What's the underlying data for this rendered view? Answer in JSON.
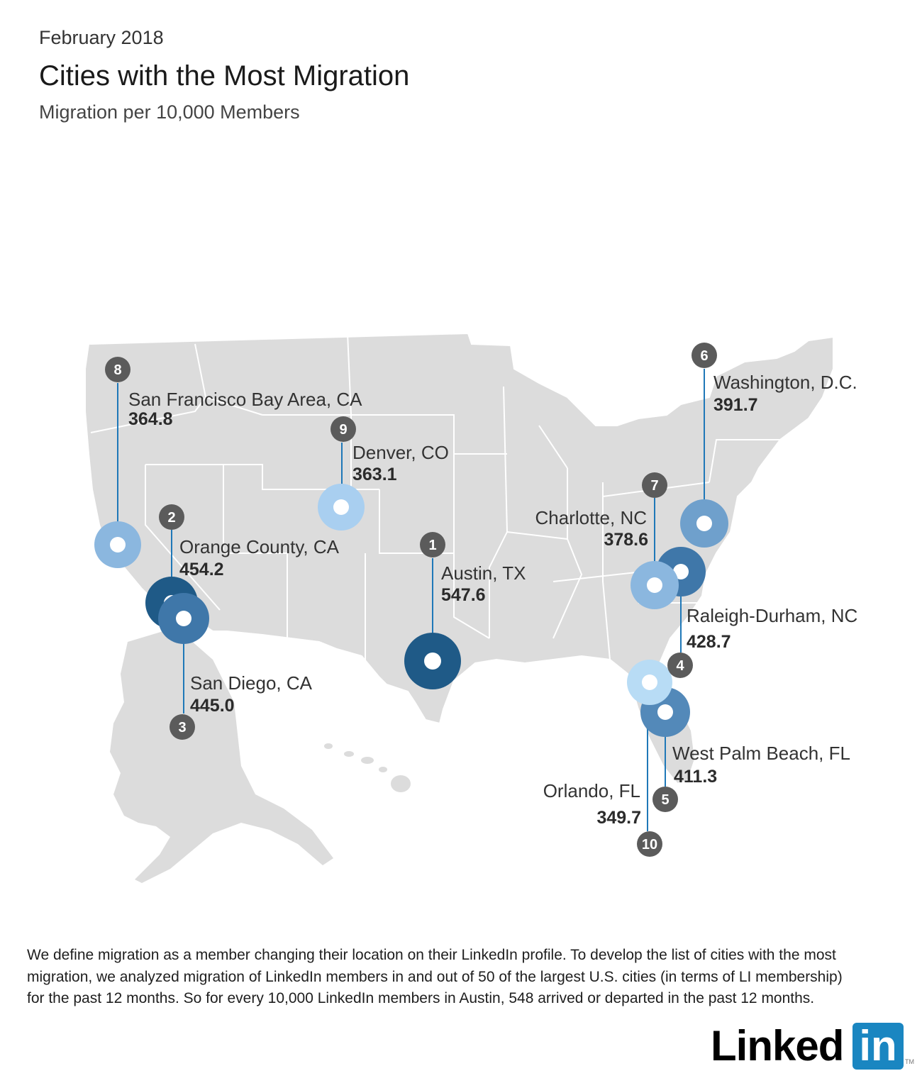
{
  "header": {
    "date": "February 2018",
    "title": "Cities with the Most Migration",
    "subtitle": "Migration per 10,000 Members"
  },
  "colors": {
    "land": "#dcdcdc",
    "leader_line": "#1f78b8",
    "badge": "#5b5b5b",
    "rank_1_3": "#1f5a87",
    "rank_4_5": "#3f77a9",
    "rank_6_9": "#8bb7df",
    "rank_10": "#b8dcf5",
    "logo_blue": "#1a86c1"
  },
  "cities": [
    {
      "rank": "1",
      "name": "Austin, TX",
      "value": "547.6"
    },
    {
      "rank": "2",
      "name": "Orange County, CA",
      "value": "454.2"
    },
    {
      "rank": "3",
      "name": "San Diego, CA",
      "value": "445.0"
    },
    {
      "rank": "4",
      "name": "Raleigh-Durham, NC",
      "value": "428.7"
    },
    {
      "rank": "5",
      "name": "West Palm Beach, FL",
      "value": "411.3"
    },
    {
      "rank": "6",
      "name": "Washington, D.C.",
      "value": "391.7"
    },
    {
      "rank": "7",
      "name": "Charlotte, NC",
      "value": "378.6"
    },
    {
      "rank": "8",
      "name": "San Francisco Bay Area, CA",
      "value": "364.8"
    },
    {
      "rank": "9",
      "name": "Denver, CO",
      "value": "363.1"
    },
    {
      "rank": "10",
      "name": "Orlando, FL",
      "value": "349.7"
    }
  ],
  "footnote": "We define migration as a member changing their location on their LinkedIn profile. To develop the list of cities with the most migration, we analyzed migration of LinkedIn members in and out of 50 of the largest U.S. cities (in terms of LI membership) for the past 12 months. So for every 10,000 LinkedIn members in Austin, 548 arrived or departed in the past 12 months.",
  "logo": {
    "word": "Linked",
    "box": "in",
    "tm": "TM"
  }
}
